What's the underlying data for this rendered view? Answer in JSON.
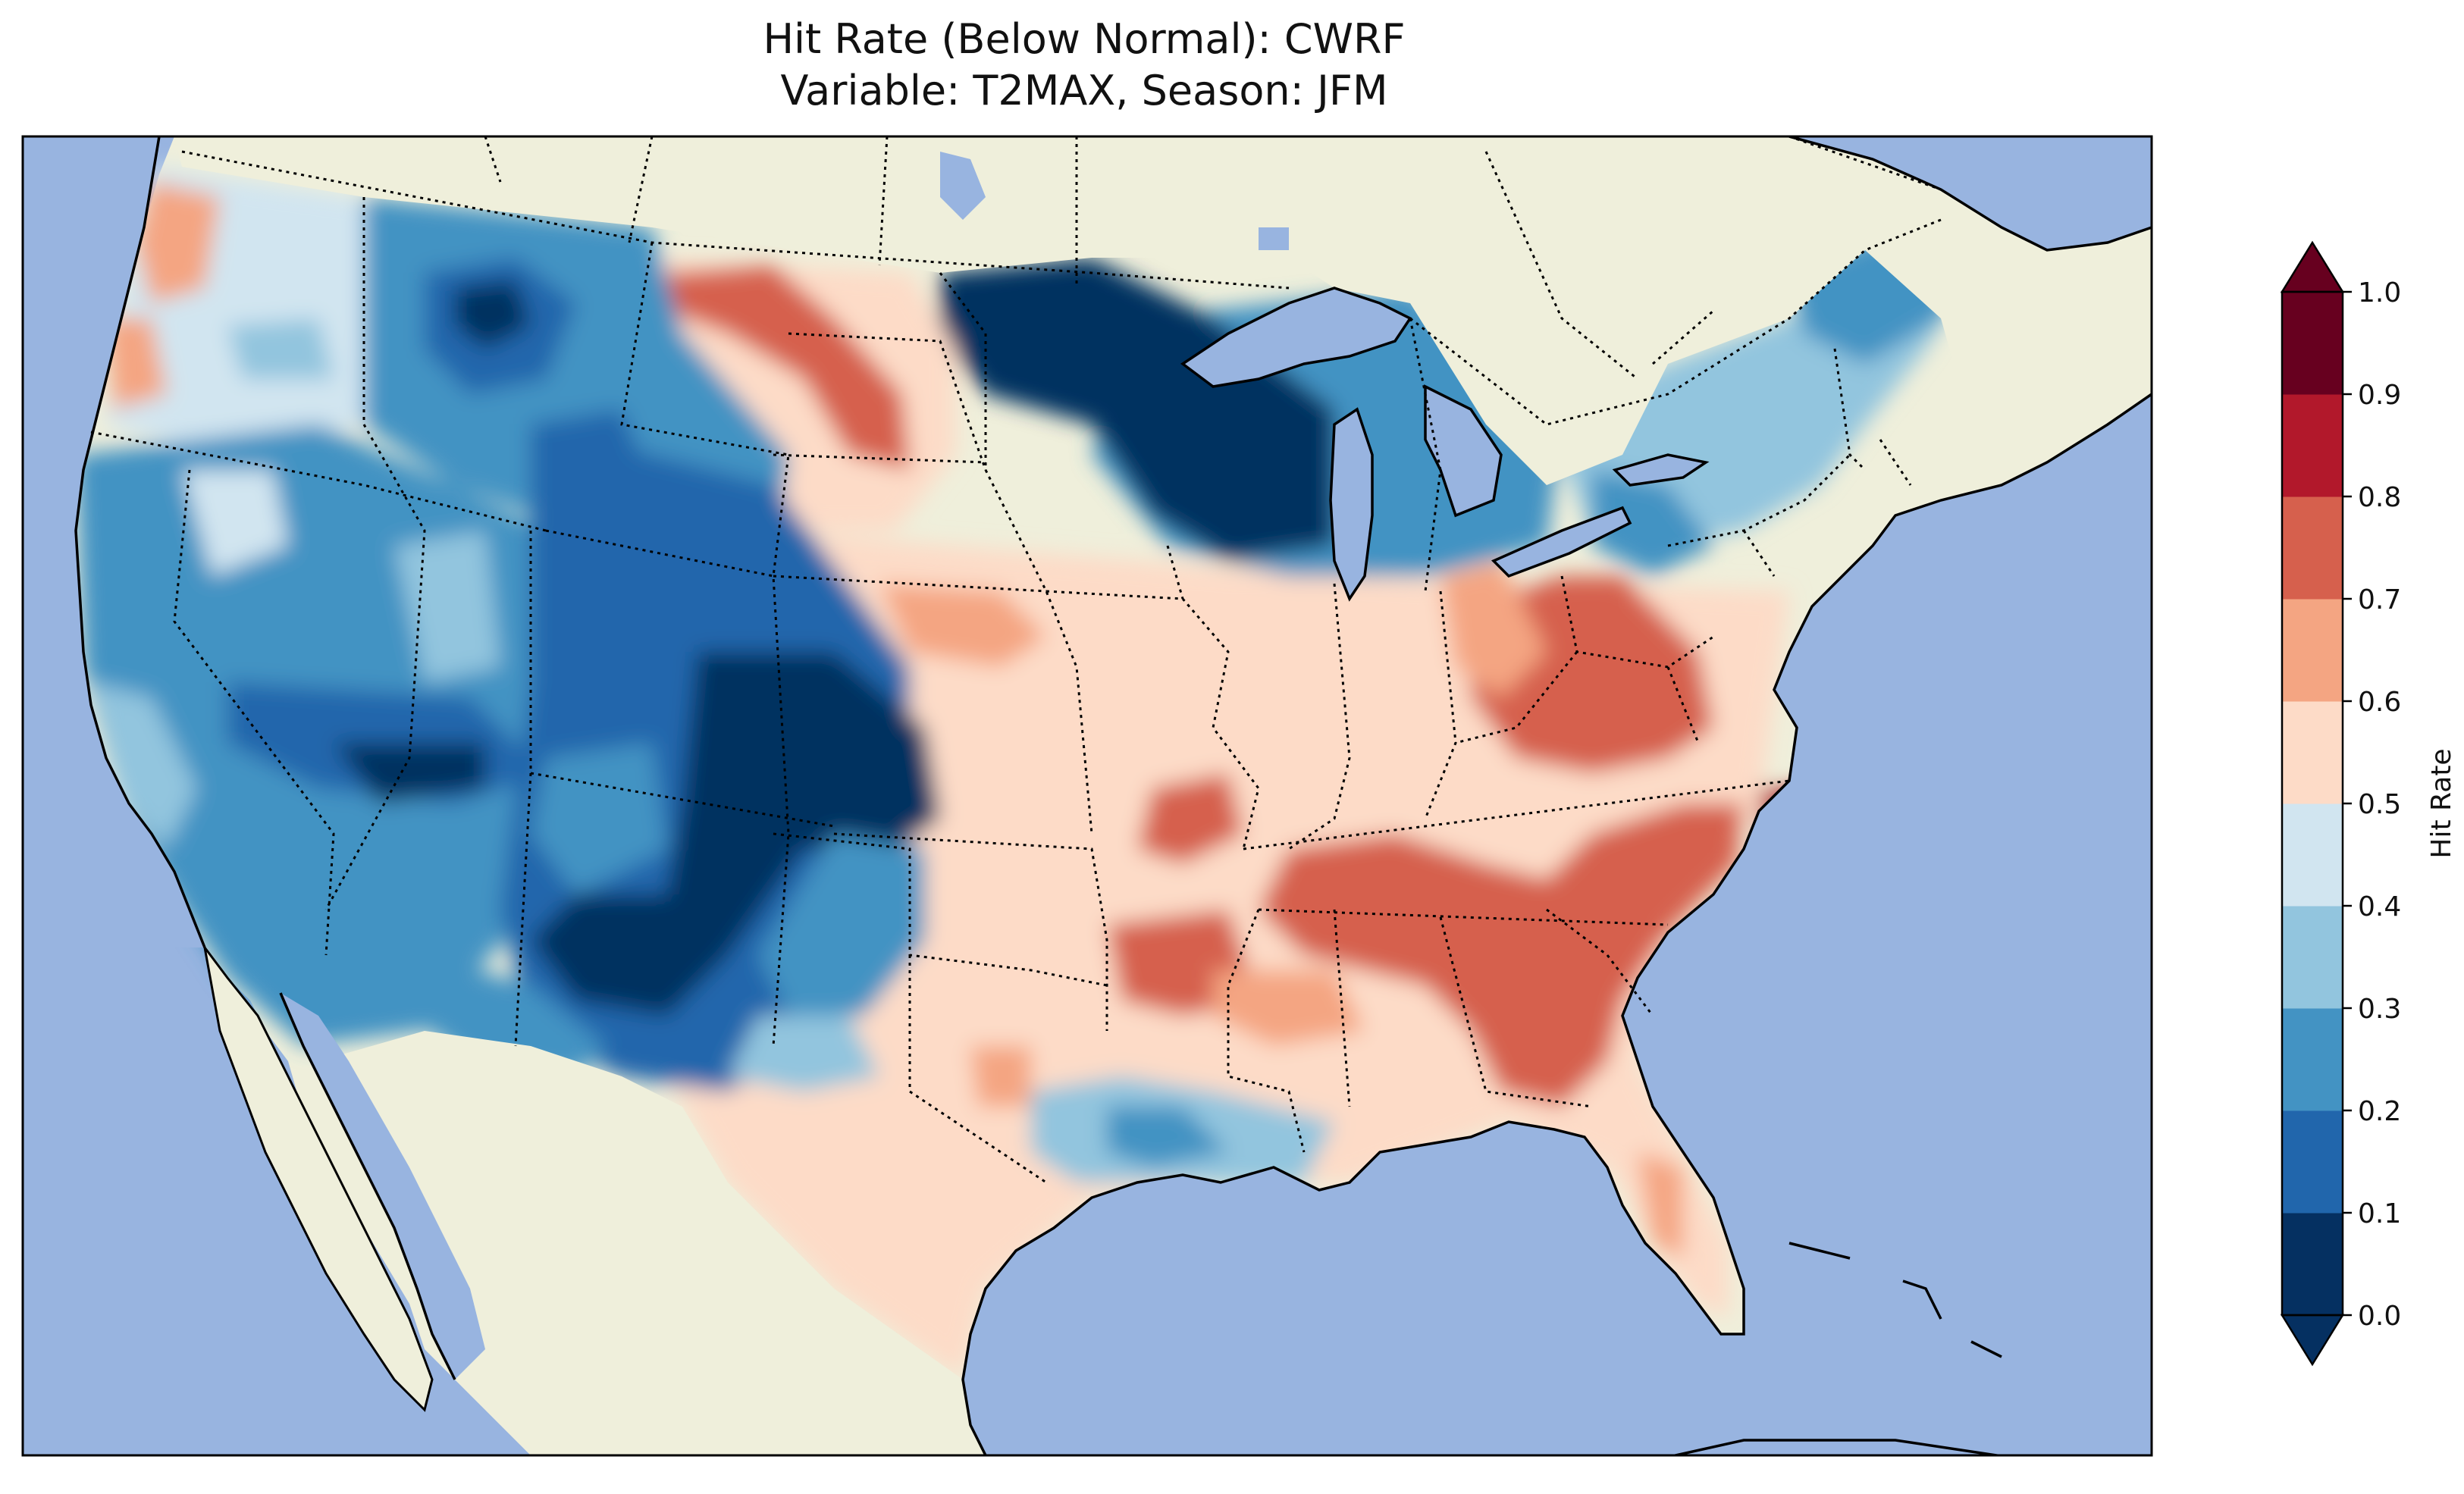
{
  "title": {
    "line1": "Hit Rate (Below Normal): CWRF",
    "line2": "Variable: T2MAX, Season: JFM"
  },
  "colorbar": {
    "label": "Hit Rate",
    "ticks": [
      "0.0",
      "0.1",
      "0.2",
      "0.3",
      "0.4",
      "0.5",
      "0.6",
      "0.7",
      "0.8",
      "0.9",
      "1.0"
    ],
    "colors": [
      "#053061",
      "#2166ac",
      "#4393c3",
      "#92c5de",
      "#d1e5f0",
      "#fddbc7",
      "#f4a582",
      "#d6604d",
      "#b2182b",
      "#67001f"
    ],
    "extend": "both"
  },
  "map": {
    "ocean_color": "#98b4e0",
    "land_color": "#efefdb",
    "colormap": "RdBu_r",
    "regions": [
      {
        "name": "pacific-northwest-coast",
        "value": 0.55
      },
      {
        "name": "idaho-montana",
        "value": 0.25
      },
      {
        "name": "wyoming-utah",
        "value": 0.15
      },
      {
        "name": "colorado-new-mexico",
        "value": 0.05
      },
      {
        "name": "minnesota-wisconsin",
        "value": 0.05
      },
      {
        "name": "california-nevada",
        "value": 0.25
      },
      {
        "name": "dakotas",
        "value": 0.7
      },
      {
        "name": "texas-plains",
        "value": 0.55
      },
      {
        "name": "southeast",
        "value": 0.72
      },
      {
        "name": "mid-atlantic",
        "value": 0.7
      },
      {
        "name": "northeast",
        "value": 0.35
      },
      {
        "name": "great-lakes",
        "value": 0.25
      },
      {
        "name": "florida",
        "value": 0.55
      },
      {
        "name": "gulf-coast",
        "value": 0.3
      }
    ]
  }
}
